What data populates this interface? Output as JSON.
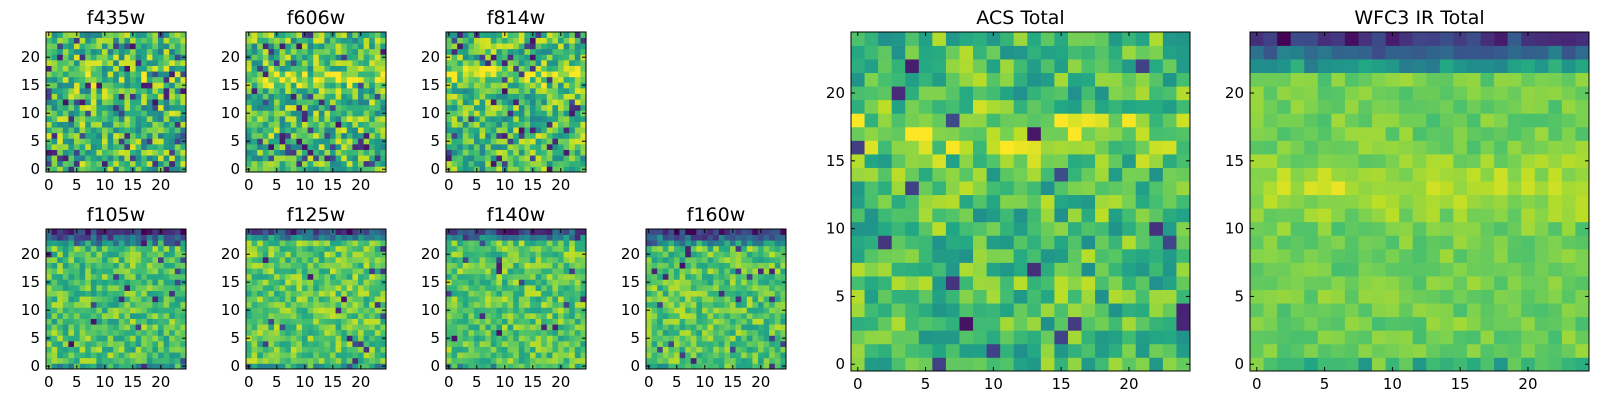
{
  "figure": {
    "panels": [
      {
        "id": "f435w",
        "title": "f435w",
        "size": "small"
      },
      {
        "id": "f606w",
        "title": "f606w",
        "size": "small"
      },
      {
        "id": "f814w",
        "title": "f814w",
        "size": "small"
      },
      {
        "id": "acs-total",
        "title": "ACS Total",
        "size": "large"
      },
      {
        "id": "wfc3-ir-total",
        "title": "WFC3 IR Total",
        "size": "large"
      },
      {
        "id": "f105w",
        "title": "f105w",
        "size": "small"
      },
      {
        "id": "f125w",
        "title": "f125w",
        "size": "small"
      },
      {
        "id": "f140w",
        "title": "f140w",
        "size": "small"
      },
      {
        "id": "f160w",
        "title": "f160w",
        "size": "small"
      }
    ]
  },
  "chart_data": [
    {
      "type": "heatmap",
      "title": "f435w",
      "grid": [
        25,
        25
      ],
      "colormap": "viridis",
      "x_ticks": [
        "0",
        "5",
        "10",
        "15",
        "20"
      ],
      "y_ticks": [
        "0",
        "5",
        "10",
        "15",
        "20"
      ],
      "xlim": [
        -0.5,
        24.5
      ],
      "ylim": [
        -0.5,
        24.5
      ],
      "pattern": {
        "base": 0.68,
        "noise": 0.28,
        "dark_rate": 0.1,
        "band": {
          "row": 16,
          "width": 2.5,
          "boost": 0.08
        }
      }
    },
    {
      "type": "heatmap",
      "title": "f606w",
      "grid": [
        25,
        25
      ],
      "colormap": "viridis",
      "x_ticks": [
        "0",
        "5",
        "10",
        "15",
        "20"
      ],
      "y_ticks": [
        "0",
        "5",
        "10",
        "15",
        "20"
      ],
      "xlim": [
        -0.5,
        24.5
      ],
      "ylim": [
        -0.5,
        24.5
      ],
      "pattern": {
        "base": 0.7,
        "noise": 0.26,
        "dark_rate": 0.09,
        "band": {
          "row": 16,
          "width": 2,
          "boost": 0.2
        }
      }
    },
    {
      "type": "heatmap",
      "title": "f814w",
      "grid": [
        25,
        25
      ],
      "colormap": "viridis",
      "x_ticks": [
        "0",
        "5",
        "10",
        "15",
        "20"
      ],
      "y_ticks": [
        "0",
        "5",
        "10",
        "15",
        "20"
      ],
      "xlim": [
        -0.5,
        24.5
      ],
      "ylim": [
        -0.5,
        24.5
      ],
      "pattern": {
        "base": 0.7,
        "noise": 0.25,
        "dark_rate": 0.08,
        "band": {
          "row": 17,
          "width": 2.5,
          "boost": 0.22
        }
      }
    },
    {
      "type": "heatmap",
      "title": "ACS Total",
      "grid": [
        25,
        25
      ],
      "colormap": "viridis",
      "x_ticks": [
        "0",
        "5",
        "10",
        "15",
        "20"
      ],
      "y_ticks": [
        "0",
        "5",
        "10",
        "15",
        "20"
      ],
      "xlim": [
        -0.5,
        24.5
      ],
      "ylim": [
        -0.5,
        24.5
      ],
      "pattern": {
        "base": 0.7,
        "noise": 0.2,
        "dark_rate": 0.045,
        "band": {
          "row": 17,
          "width": 2.5,
          "boost": 0.2
        }
      }
    },
    {
      "type": "heatmap",
      "title": "WFC3 IR Total",
      "grid": [
        25,
        25
      ],
      "colormap": "viridis",
      "x_ticks": [
        "0",
        "5",
        "10",
        "15",
        "20"
      ],
      "y_ticks": [
        "0",
        "5",
        "10",
        "15",
        "20"
      ],
      "xlim": [
        -0.5,
        24.5
      ],
      "ylim": [
        -0.5,
        24.5
      ],
      "pattern": {
        "base": 0.78,
        "noise": 0.08,
        "dark_rate": 0.0,
        "top_dark": {
          "rows": 3,
          "depth": 0.55
        },
        "bottom_dark": {
          "rows": 1,
          "depth": 0.2
        },
        "band": {
          "row": 13,
          "width": 3,
          "boost": 0.12
        }
      }
    },
    {
      "type": "heatmap",
      "title": "f105w",
      "grid": [
        25,
        25
      ],
      "colormap": "viridis",
      "x_ticks": [
        "0",
        "5",
        "10",
        "15",
        "20"
      ],
      "y_ticks": [
        "0",
        "5",
        "10",
        "15",
        "20"
      ],
      "xlim": [
        -0.5,
        24.5
      ],
      "ylim": [
        -0.5,
        24.5
      ],
      "pattern": {
        "base": 0.72,
        "noise": 0.18,
        "dark_rate": 0.03,
        "top_dark": {
          "rows": 3,
          "depth": 0.5
        },
        "bottom_dark": {
          "rows": 1,
          "depth": 0.3
        }
      }
    },
    {
      "type": "heatmap",
      "title": "f125w",
      "grid": [
        25,
        25
      ],
      "colormap": "viridis",
      "x_ticks": [
        "0",
        "5",
        "10",
        "15",
        "20"
      ],
      "y_ticks": [
        "0",
        "5",
        "10",
        "15",
        "20"
      ],
      "xlim": [
        -0.5,
        24.5
      ],
      "ylim": [
        -0.5,
        24.5
      ],
      "pattern": {
        "base": 0.75,
        "noise": 0.17,
        "dark_rate": 0.02,
        "top_dark": {
          "rows": 2,
          "depth": 0.45
        },
        "bottom_dark": {
          "rows": 1,
          "depth": 0.4
        }
      }
    },
    {
      "type": "heatmap",
      "title": "f140w",
      "grid": [
        25,
        25
      ],
      "colormap": "viridis",
      "x_ticks": [
        "0",
        "5",
        "10",
        "15",
        "20"
      ],
      "y_ticks": [
        "0",
        "5",
        "10",
        "15",
        "20"
      ],
      "xlim": [
        -0.5,
        24.5
      ],
      "ylim": [
        -0.5,
        24.5
      ],
      "pattern": {
        "base": 0.74,
        "noise": 0.17,
        "dark_rate": 0.02,
        "top_dark": {
          "rows": 2,
          "depth": 0.45
        },
        "bottom_dark": {
          "rows": 1,
          "depth": 0.2
        }
      }
    },
    {
      "type": "heatmap",
      "title": "f160w",
      "grid": [
        25,
        25
      ],
      "colormap": "viridis",
      "x_ticks": [
        "0",
        "5",
        "10",
        "15",
        "20"
      ],
      "y_ticks": [
        "0",
        "5",
        "10",
        "15",
        "20"
      ],
      "xlim": [
        -0.5,
        24.5
      ],
      "ylim": [
        -0.5,
        24.5
      ],
      "pattern": {
        "base": 0.73,
        "noise": 0.17,
        "dark_rate": 0.03,
        "top_dark": {
          "rows": 3,
          "depth": 0.5
        },
        "bottom_dark": {
          "rows": 1,
          "depth": 0.25
        }
      }
    }
  ]
}
